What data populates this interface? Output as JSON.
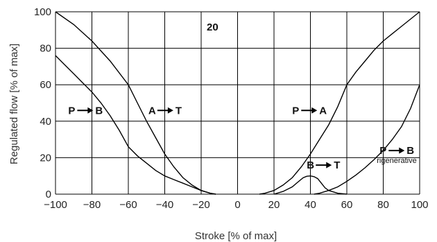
{
  "chart_data": {
    "type": "line",
    "title": "20",
    "xlabel": "Stroke [% of max]",
    "ylabel": "Regulated flow [% of max]",
    "xlim": [
      -100,
      100
    ],
    "ylim": [
      0,
      100
    ],
    "xticks": [
      -100,
      -80,
      -60,
      -40,
      -20,
      0,
      20,
      40,
      60,
      80,
      100
    ],
    "yticks": [
      0,
      20,
      40,
      60,
      80,
      100
    ],
    "grid": true,
    "series": [
      {
        "name": "A → T",
        "x": [
          -100,
          -90,
          -80,
          -70,
          -60,
          -55,
          -50,
          -45,
          -40,
          -35,
          -30,
          -25,
          -20,
          -15,
          -12
        ],
        "y": [
          100,
          93,
          84,
          73,
          60,
          50,
          40,
          31,
          22,
          15,
          9,
          5,
          2,
          0.5,
          0
        ]
      },
      {
        "name": "P → B",
        "x": [
          -100,
          -95,
          -90,
          -85,
          -80,
          -75,
          -70,
          -65,
          -60,
          -55,
          -50,
          -45,
          -40,
          -35,
          -30,
          -25,
          -20,
          -15,
          -12
        ],
        "y": [
          76,
          71,
          66,
          61,
          56,
          50,
          43,
          35,
          26,
          21,
          17,
          13,
          10,
          8,
          6,
          4,
          2,
          0.5,
          0
        ]
      },
      {
        "name": "P → A",
        "x": [
          12,
          15,
          20,
          25,
          30,
          35,
          40,
          45,
          50,
          55,
          60,
          65,
          70,
          75,
          80,
          85,
          90,
          95,
          100
        ],
        "y": [
          0,
          0.5,
          2,
          5,
          9,
          15,
          22,
          30,
          38,
          48,
          60,
          67,
          73,
          79,
          84,
          88,
          92,
          96,
          100
        ]
      },
      {
        "name": "B → T",
        "x": [
          20,
          25,
          30,
          33,
          36,
          38,
          40,
          42,
          44,
          46,
          48,
          50,
          55,
          60
        ],
        "y": [
          0,
          1.5,
          4,
          6.5,
          9,
          9.8,
          10,
          9.6,
          8.5,
          6,
          3.5,
          2,
          0.5,
          0
        ]
      },
      {
        "name": "P → B rigenerative",
        "x": [
          42,
          45,
          50,
          55,
          60,
          65,
          70,
          75,
          80,
          85,
          90,
          95,
          100
        ],
        "y": [
          0,
          0.5,
          2,
          4,
          7,
          10.5,
          14.5,
          19,
          24,
          30,
          37,
          47,
          60
        ]
      }
    ],
    "annotations": [
      {
        "label_a": "P",
        "label_b": "B",
        "x": -93,
        "y": 44
      },
      {
        "label_a": "A",
        "label_b": "T",
        "x": -49,
        "y": 44
      },
      {
        "label_a": "P",
        "label_b": "A",
        "x": 30,
        "y": 44
      },
      {
        "label_a": "B",
        "label_b": "T",
        "x": 38,
        "y": 14
      },
      {
        "label_a": "P",
        "label_b": "B",
        "x": 78,
        "y": 22,
        "sub": "rigenerative"
      }
    ]
  }
}
